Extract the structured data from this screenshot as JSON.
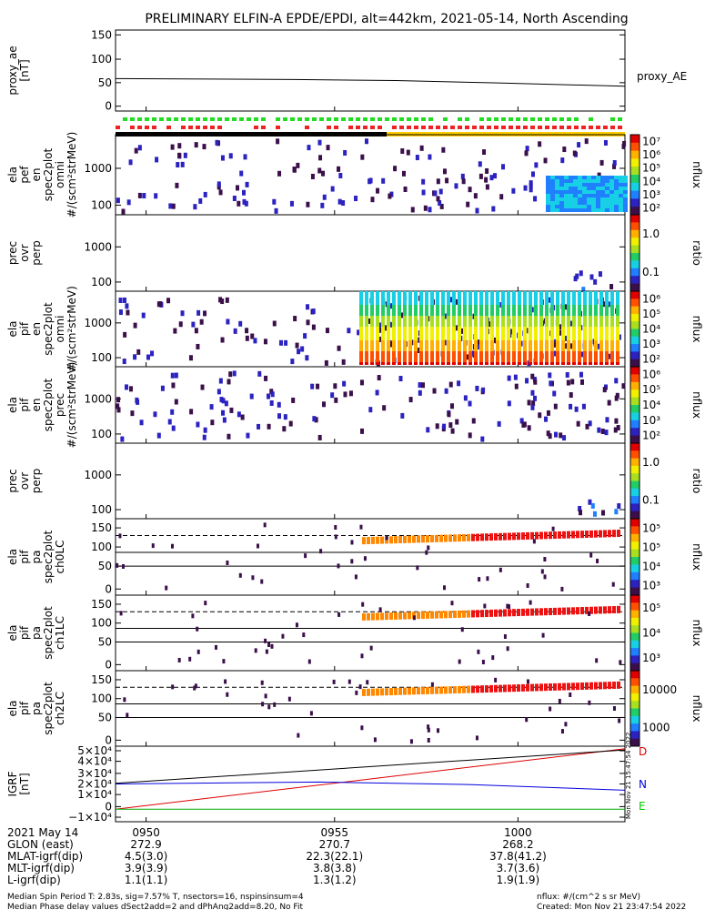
{
  "chart_data": {
    "type": "spectrogram",
    "title": "PRELIMINARY ELFIN-A EPDE/EPDI, alt=442km, 2021-05-14, North Ascending",
    "x_ticks": [
      "0950",
      "0955",
      "1000"
    ],
    "panels": [
      {
        "id": "proxy_ae",
        "ylabel": [
          "proxy_ae",
          "[nT]"
        ],
        "yticks": [
          "150",
          "100",
          "50",
          "0"
        ],
        "right_label": "proxy_AE",
        "series": [
          {
            "x_frac": [
              0,
              0.35,
              0.55,
              0.75,
              1
            ],
            "y": [
              58,
              56,
              54,
              49,
              42
            ]
          }
        ],
        "ylim": [
          -10,
          160
        ]
      },
      {
        "id": "elx_pef_omni",
        "ylabel": [
          "ela",
          "pef",
          "en",
          "spec2plot",
          "omni",
          "#/(scm²strMeV)"
        ],
        "yticks": [
          "1000",
          "100"
        ],
        "cbar_ticks": [
          "10⁷",
          "10⁶",
          "10⁵",
          "10⁴",
          "10³",
          "10²"
        ],
        "cbar_label": "nflux"
      },
      {
        "id": "elx_pef_ratio",
        "ylabel": [
          "prec",
          "ovr",
          "perp"
        ],
        "yticks": [
          "1000",
          "100"
        ],
        "cbar_ticks": [
          "1.0",
          "0.1"
        ],
        "cbar_label": "ratio"
      },
      {
        "id": "elx_pif_omni",
        "ylabel": [
          "ela",
          "pif",
          "en",
          "spec2plot",
          "omni",
          "#/(scm²strMeV)"
        ],
        "yticks": [
          "1000",
          "100"
        ],
        "cbar_ticks": [
          "10⁶",
          "10⁵",
          "10⁴",
          "10³",
          "10²"
        ],
        "cbar_label": "nflux"
      },
      {
        "id": "elx_pif_prec",
        "ylabel": [
          "ela",
          "pif",
          "en",
          "spec2plot",
          "prec",
          "#/(scm²strMeV)"
        ],
        "yticks": [
          "1000",
          "100"
        ],
        "cbar_ticks": [
          "10⁶",
          "10⁵",
          "10⁴",
          "10³",
          "10²"
        ],
        "cbar_label": "nflux"
      },
      {
        "id": "elx_pif_ratio",
        "ylabel": [
          "prec",
          "ovr",
          "perp"
        ],
        "yticks": [
          "1000",
          "100"
        ],
        "cbar_ticks": [
          "1.0",
          "0.1"
        ],
        "cbar_label": "ratio"
      },
      {
        "id": "pa_ch0",
        "ylabel": [
          "ela",
          "pif",
          "pa",
          "spec2plot",
          "ch0LC"
        ],
        "yticks": [
          "150",
          "100",
          "50",
          "0"
        ],
        "cbar_ticks": [
          "10⁵",
          "10⁵",
          "10⁴",
          "10³"
        ],
        "cbar_label": "nflux"
      },
      {
        "id": "pa_ch1",
        "ylabel": [
          "ela",
          "pif",
          "pa",
          "spec2plot",
          "ch1LC"
        ],
        "yticks": [
          "150",
          "100",
          "50",
          "0"
        ],
        "cbar_ticks": [
          "10⁵",
          "10⁴",
          "10³"
        ],
        "cbar_label": "nflux"
      },
      {
        "id": "pa_ch2",
        "ylabel": [
          "ela",
          "pif",
          "pa",
          "spec2plot",
          "ch2LC"
        ],
        "yticks": [
          "150",
          "100",
          "50",
          "0"
        ],
        "cbar_ticks": [
          "10000",
          "1000"
        ],
        "cbar_label": "nflux"
      },
      {
        "id": "igrf",
        "ylabel": [
          "IGRF",
          "[nT]"
        ],
        "yticks": [
          "5×10⁴",
          "4×10⁴",
          "3×10⁴",
          "2×10⁴",
          "1×10⁴",
          "0",
          "−1×10⁴"
        ],
        "right_labels": [
          {
            "text": "D",
            "color": "#dd0000"
          },
          {
            "text": "N",
            "color": "#0000dd"
          },
          {
            "text": "E",
            "color": "#00cc00"
          }
        ],
        "series": [
          {
            "name": "D",
            "color": "#dd0000",
            "x_frac": [
              0,
              1
            ],
            "y": [
              0,
              48000
            ]
          },
          {
            "name": "N",
            "color": "#0000dd",
            "x_frac": [
              0,
              0.4,
              0.7,
              1
            ],
            "y": [
              20000,
              21500,
              19500,
              15000
            ]
          },
          {
            "name": "E",
            "color": "#00aa00",
            "x_frac": [
              0,
              1
            ],
            "y": [
              0,
              0
            ]
          },
          {
            "name": "total",
            "color": "#000000",
            "x_frac": [
              0,
              1
            ],
            "y": [
              20500,
              47000
            ]
          }
        ],
        "ylim": [
          -10000,
          50000
        ]
      }
    ],
    "side_stamp": "Mon Nov 21 15:47:54 2022"
  },
  "footer": {
    "rows": [
      {
        "label": "2021 May 14",
        "values": [
          "0950",
          "0955",
          "1000"
        ]
      },
      {
        "label": "GLON (east)",
        "values": [
          "272.9",
          "270.7",
          "268.2"
        ]
      },
      {
        "label": "MLAT-igrf(dip)",
        "values": [
          "4.5(3.0)",
          "22.3(22.1)",
          "37.8(41.2)"
        ]
      },
      {
        "label": "MLT-igrf(dip)",
        "values": [
          "3.9(3.9)",
          "3.8(3.8)",
          "3.7(3.6)"
        ]
      },
      {
        "label": "L-igrf(dip)",
        "values": [
          "1.1(1.1)",
          "1.3(1.2)",
          "1.9(1.9)"
        ]
      }
    ],
    "note1": "Median Spin Period T: 2.83s, sig=7.57% T, nsectors=16, nspinsinsum=4",
    "note2": "Median Phase delay values dSect2add=2 and dPhAng2add=8.20, No Fit",
    "units": "nflux: #/(cm^2 s sr MeV)",
    "created": "Created: Mon Nov 21 23:47:54 2022"
  }
}
